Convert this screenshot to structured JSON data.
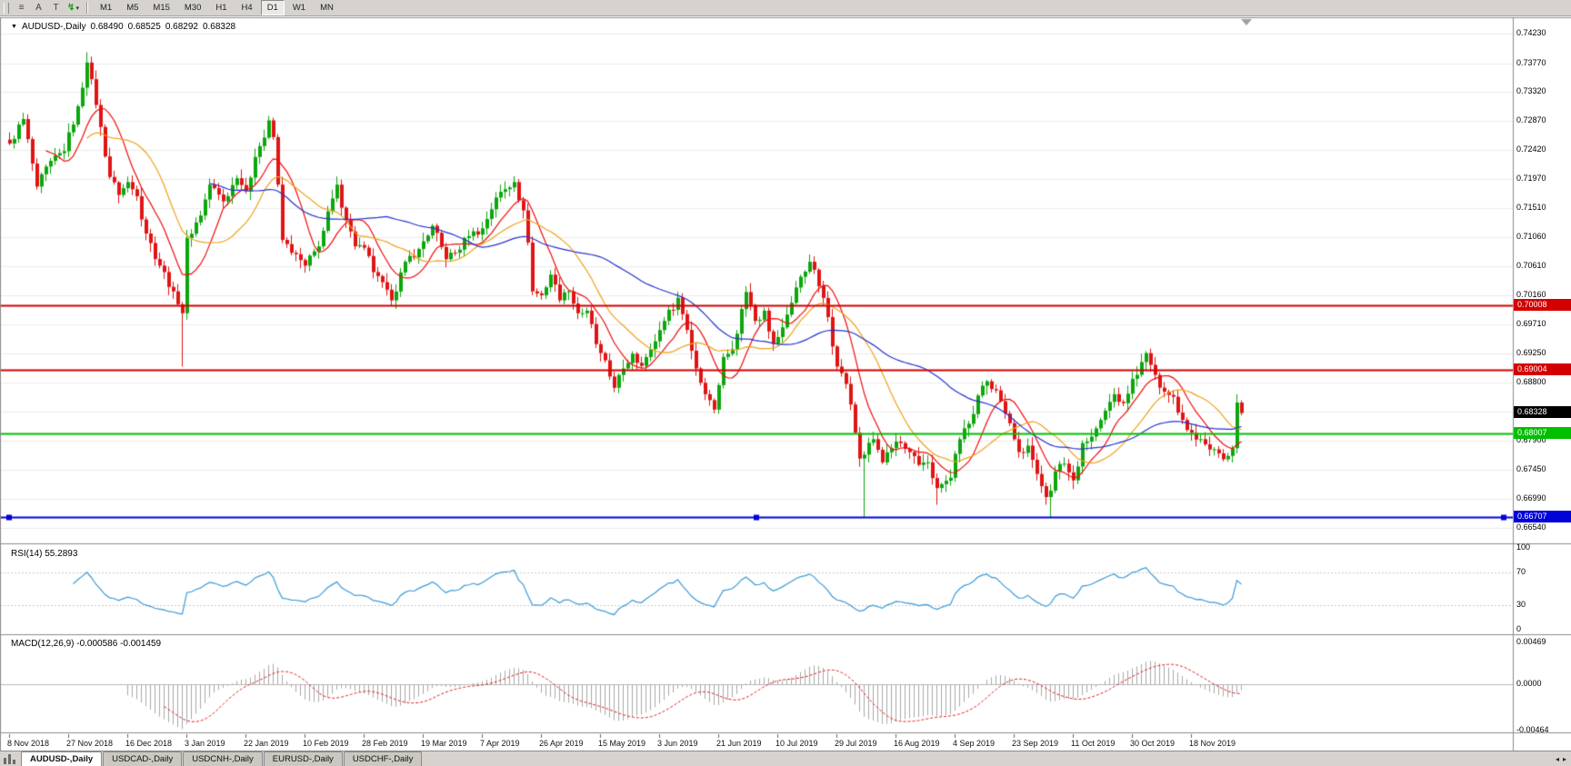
{
  "title": {
    "symbol": "AUDUSD-,Daily",
    "open": "0.68490",
    "high": "0.68525",
    "low": "0.68292",
    "close": "0.68328"
  },
  "toolbar": {
    "tools": [
      {
        "glyph": "≡"
      },
      {
        "glyph": "A"
      },
      {
        "glyph": "T"
      },
      {
        "glyph": "↯",
        "caret": "▾"
      }
    ],
    "periods": [
      {
        "label": "M1"
      },
      {
        "label": "M5"
      },
      {
        "label": "M15"
      },
      {
        "label": "M30"
      },
      {
        "label": "H1"
      },
      {
        "label": "H4"
      },
      {
        "label": "D1",
        "active": true
      },
      {
        "label": "W1"
      },
      {
        "label": "MN"
      }
    ]
  },
  "price_axis": {
    "labels": [
      "0.74230",
      "0.73770",
      "0.73320",
      "0.72870",
      "0.72420",
      "0.71970",
      "0.71510",
      "0.71060",
      "0.70610",
      "0.70160",
      "0.69710",
      "0.69250",
      "0.68800",
      "0.68350",
      "0.67900",
      "0.67450",
      "0.66990",
      "0.66540"
    ]
  },
  "levels": [
    {
      "name": "resistance-line-1",
      "label": "0.70008",
      "price": 0.70008,
      "color": "#d40000"
    },
    {
      "name": "resistance-line-2",
      "label": "0.69004",
      "price": 0.69004,
      "color": "#d40000"
    },
    {
      "name": "support-line-green",
      "label": "0.68007",
      "price": 0.68007,
      "color": "#00c000"
    },
    {
      "name": "support-line-blue",
      "label": "0.66707",
      "price": 0.66707,
      "color": "#0000d9",
      "handles": true
    }
  ],
  "current_price": {
    "label": "0.68328",
    "value": 0.68328,
    "bg": "#000000"
  },
  "rsi": {
    "label": "RSI(14) 55.2893",
    "color": "#3b9ad9",
    "levels": [
      70,
      30
    ],
    "axis": [
      {
        "label": "100",
        "value": 100
      },
      {
        "label": "70",
        "value": 70
      },
      {
        "label": "30",
        "value": 30
      },
      {
        "label": "0",
        "value": 0
      }
    ]
  },
  "macd": {
    "label": "MACD(12,26,9) -0.000586 -0.001459",
    "max": 0.00469,
    "min": -0.00464,
    "axis": [
      {
        "label": "0.00469",
        "value": 0.00469
      },
      {
        "label": "0.0000",
        "value": 0
      },
      {
        "label": "-0.00464",
        "value": -0.00464
      }
    ]
  },
  "dates": [
    "8 Nov 2018",
    "27 Nov 2018",
    "16 Dec 2018",
    "3 Jan 2019",
    "22 Jan 2019",
    "10 Feb 2019",
    "28 Feb 2019",
    "19 Mar 2019",
    "7 Apr 2019",
    "26 Apr 2019",
    "15 May 2019",
    "3 Jun 2019",
    "21 Jun 2019",
    "10 Jul 2019",
    "29 Jul 2019",
    "16 Aug 2019",
    "4 Sep 2019",
    "23 Sep 2019",
    "11 Oct 2019",
    "30 Oct 2019",
    "18 Nov 2019"
  ],
  "tabs": [
    {
      "label": "AUDUSD-,Daily",
      "active": true
    },
    {
      "label": "USDCAD-,Daily"
    },
    {
      "label": "USDCNH-,Daily"
    },
    {
      "label": "EURUSD-,Daily"
    },
    {
      "label": "USDCHF-,Daily"
    }
  ],
  "tabbar": {
    "scroll_left": "◂",
    "scroll_right": "▸"
  },
  "chart_data": {
    "type": "candlestick",
    "symbol": "AUDUSD-",
    "timeframe": "Daily",
    "candle_count": 272,
    "date_tick_every": 13,
    "up_color": "#0da60d",
    "down_color": "#e01414",
    "noise": 0.0016,
    "wick": 0.0014,
    "ma": [
      {
        "period": 9,
        "color": "#f20c0c"
      },
      {
        "period": 18,
        "color": "#efa21a"
      },
      {
        "period": 45,
        "color": "#2433cf"
      }
    ],
    "rsi_period": 14,
    "macd_params": [
      12,
      26,
      9
    ],
    "anchors": [
      [
        0,
        0.7252
      ],
      [
        3,
        0.729
      ],
      [
        6,
        0.7185
      ],
      [
        9,
        0.7225
      ],
      [
        12,
        0.724
      ],
      [
        15,
        0.731
      ],
      [
        17,
        0.7378
      ],
      [
        19,
        0.7312
      ],
      [
        22,
        0.72
      ],
      [
        24,
        0.7172
      ],
      [
        26,
        0.7192
      ],
      [
        28,
        0.717
      ],
      [
        30,
        0.7112
      ],
      [
        33,
        0.7062
      ],
      [
        36,
        0.7022
      ],
      [
        37,
        0.7002
      ],
      [
        38,
        0.6988
      ],
      [
        39,
        0.7105
      ],
      [
        42,
        0.714
      ],
      [
        44,
        0.7188
      ],
      [
        47,
        0.7162
      ],
      [
        50,
        0.7198
      ],
      [
        52,
        0.7178
      ],
      [
        55,
        0.7248
      ],
      [
        57,
        0.7288
      ],
      [
        58,
        0.7262
      ],
      [
        60,
        0.7102
      ],
      [
        62,
        0.7082
      ],
      [
        65,
        0.7062
      ],
      [
        68,
        0.7092
      ],
      [
        72,
        0.7188
      ],
      [
        74,
        0.7132
      ],
      [
        76,
        0.7092
      ],
      [
        78,
        0.709
      ],
      [
        80,
        0.7052
      ],
      [
        84,
        0.7008
      ],
      [
        87,
        0.7068
      ],
      [
        90,
        0.7088
      ],
      [
        93,
        0.7124
      ],
      [
        96,
        0.7072
      ],
      [
        98,
        0.7082
      ],
      [
        101,
        0.7108
      ],
      [
        104,
        0.712
      ],
      [
        107,
        0.7168
      ],
      [
        111,
        0.7192
      ],
      [
        113,
        0.7148
      ],
      [
        114,
        0.7098
      ],
      [
        115,
        0.7022
      ],
      [
        117,
        0.7016
      ],
      [
        119,
        0.7048
      ],
      [
        121,
        0.7008
      ],
      [
        123,
        0.7022
      ],
      [
        125,
        0.6988
      ],
      [
        127,
        0.6992
      ],
      [
        129,
        0.694
      ],
      [
        130,
        0.6926
      ],
      [
        133,
        0.6872
      ],
      [
        135,
        0.6902
      ],
      [
        137,
        0.6925
      ],
      [
        139,
        0.6906
      ],
      [
        141,
        0.6932
      ],
      [
        144,
        0.6976
      ],
      [
        147,
        0.7012
      ],
      [
        149,
        0.6962
      ],
      [
        151,
        0.6902
      ],
      [
        153,
        0.6862
      ],
      [
        155,
        0.6838
      ],
      [
        157,
        0.692
      ],
      [
        159,
        0.6932
      ],
      [
        162,
        0.7021
      ],
      [
        164,
        0.6976
      ],
      [
        166,
        0.6992
      ],
      [
        168,
        0.694
      ],
      [
        170,
        0.6966
      ],
      [
        173,
        0.7028
      ],
      [
        176,
        0.7068
      ],
      [
        178,
        0.703
      ],
      [
        180,
        0.6982
      ],
      [
        182,
        0.6905
      ],
      [
        184,
        0.6878
      ],
      [
        185,
        0.6846
      ],
      [
        186,
        0.6802
      ],
      [
        187,
        0.6762
      ],
      [
        188,
        0.6768
      ],
      [
        190,
        0.6792
      ],
      [
        192,
        0.6756
      ],
      [
        194,
        0.6778
      ],
      [
        196,
        0.6786
      ],
      [
        198,
        0.6772
      ],
      [
        200,
        0.6752
      ],
      [
        202,
        0.6756
      ],
      [
        204,
        0.6716
      ],
      [
        205,
        0.6722
      ],
      [
        207,
        0.6732
      ],
      [
        209,
        0.6792
      ],
      [
        211,
        0.6816
      ],
      [
        213,
        0.686
      ],
      [
        215,
        0.6882
      ],
      [
        217,
        0.6868
      ],
      [
        219,
        0.6832
      ],
      [
        221,
        0.6792
      ],
      [
        222,
        0.6772
      ],
      [
        224,
        0.6782
      ],
      [
        226,
        0.6738
      ],
      [
        228,
        0.6702
      ],
      [
        229,
        0.6712
      ],
      [
        230,
        0.6742
      ],
      [
        232,
        0.6754
      ],
      [
        234,
        0.6728
      ],
      [
        236,
        0.6786
      ],
      [
        238,
        0.6796
      ],
      [
        240,
        0.6822
      ],
      [
        243,
        0.6862
      ],
      [
        245,
        0.6848
      ],
      [
        247,
        0.6886
      ],
      [
        249,
        0.6912
      ],
      [
        250,
        0.6926
      ],
      [
        252,
        0.6892
      ],
      [
        254,
        0.6866
      ],
      [
        256,
        0.6858
      ],
      [
        258,
        0.6822
      ],
      [
        260,
        0.6802
      ],
      [
        262,
        0.6792
      ],
      [
        264,
        0.6776
      ],
      [
        266,
        0.677
      ],
      [
        268,
        0.6766
      ],
      [
        269,
        0.6778
      ],
      [
        270,
        0.6849
      ],
      [
        271,
        0.68328
      ]
    ],
    "spikes": [
      {
        "i": 17,
        "high": 0.7394
      },
      {
        "i": 38,
        "low": 0.6905
      },
      {
        "i": 57,
        "high": 0.7295
      },
      {
        "i": 133,
        "low": 0.6865
      },
      {
        "i": 155,
        "low": 0.6832
      },
      {
        "i": 188,
        "low": 0.66707
      },
      {
        "i": 204,
        "low": 0.669
      },
      {
        "i": 229,
        "low": 0.66707
      },
      {
        "i": 250,
        "high": 0.6929
      }
    ],
    "last_candle": {
      "o": 0.6849,
      "h": 0.68525,
      "l": 0.68292,
      "c": 0.68328
    }
  }
}
